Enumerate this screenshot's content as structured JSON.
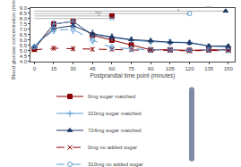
{
  "chart_data": {
    "type": "line",
    "x": [
      0,
      15,
      30,
      45,
      60,
      75,
      90,
      105,
      120,
      135,
      150
    ],
    "xlabel": "Postprandial time point (minutes)",
    "ylabel": "Blood glucose concentration (mmol/L)",
    "xlim": [
      -3,
      155
    ],
    "ylim": [
      4.0,
      9.0
    ],
    "xticks": [
      0,
      15,
      30,
      45,
      60,
      75,
      90,
      105,
      120,
      135,
      150
    ],
    "yticks": [
      {
        "value": 4,
        "label": "4.0"
      },
      4.5,
      {
        "value": 5,
        "label": "5.0"
      },
      5.5,
      {
        "value": 6,
        "label": "6.0"
      },
      6.5,
      {
        "value": 7,
        "label": "7.0"
      },
      7.5,
      {
        "value": 8,
        "label": "8.0"
      },
      8.5,
      {
        "value": 9,
        "label": "9.0"
      }
    ],
    "grid": false,
    "legend": "below",
    "series": [
      {
        "name": "0mg sugar matched",
        "color": "#8B0000",
        "marker": "square",
        "line_style": "solid",
        "values": [
          5.15,
          7.5,
          7.75,
          6.45,
          6.0,
          5.55,
          5.1,
          5.1,
          5.05,
          5.1,
          5.1
        ],
        "errors": [
          0.15,
          0.25,
          0.2,
          0.25,
          0.2,
          0.18,
          0.15,
          0.15,
          0.12,
          0.12,
          0.12
        ]
      },
      {
        "name": "310mg sugar matched",
        "color": "#5B9BD5",
        "marker": "plus",
        "line_style": "solid",
        "values": [
          5.35,
          7.5,
          7.75,
          6.5,
          6.25,
          6.0,
          5.85,
          5.85,
          5.8,
          5.45,
          5.35
        ],
        "errors": [
          0.15,
          0.3,
          0.25,
          0.3,
          0.25,
          0.22,
          0.2,
          0.2,
          0.18,
          0.15,
          0.15
        ]
      },
      {
        "name": "724mg sugar matched",
        "color": "#1F3864",
        "marker": "triangle",
        "line_style": "solid",
        "values": [
          5.4,
          7.1,
          7.35,
          6.6,
          6.3,
          6.05,
          5.95,
          5.8,
          5.75,
          5.45,
          5.45
        ],
        "errors": [
          0.15,
          0.3,
          0.28,
          0.32,
          0.28,
          0.25,
          0.22,
          0.22,
          0.2,
          0.18,
          0.18
        ]
      },
      {
        "name": "0mg no added sugar",
        "color": "#8B0000",
        "marker": "x",
        "line_style": "dashed",
        "values": [
          5.1,
          5.25,
          5.2,
          5.15,
          5.15,
          5.1,
          5.05,
          5.05,
          5.0,
          5.05,
          5.0
        ],
        "errors": [
          0.12,
          0.18,
          0.18,
          0.15,
          0.15,
          0.12,
          0.12,
          0.12,
          0.1,
          0.1,
          0.1
        ]
      },
      {
        "name": "310mg no added sugar",
        "color": "#5B9BD5",
        "marker": "circle",
        "line_style": "dashed",
        "values": [
          5.35,
          6.95,
          7.0,
          6.0,
          5.3,
          5.2,
          5.1,
          5.1,
          5.05,
          5.1,
          5.05
        ],
        "errors": [
          0.15,
          0.32,
          0.35,
          0.35,
          0.3,
          0.25,
          0.2,
          0.2,
          0.18,
          0.15,
          0.15
        ]
      }
    ],
    "annotations": [
      {
        "text": "***",
        "x": 135,
        "y": 8.72,
        "x_start": 0,
        "x_end": 148,
        "color": "#808080",
        "end_marker": "triangle",
        "end_marker_color": "#1F3864",
        "end_x": 148
      },
      {
        "text": "*",
        "x": 112,
        "y": 8.48,
        "x_start": 0,
        "x_end": 120,
        "color": "#808080",
        "end_marker": "circle",
        "end_marker_color": "#5B9BD5",
        "end_x": 120
      },
      {
        "text": "***",
        "x": 50,
        "y": 8.26,
        "x_start": 0,
        "x_end": 60,
        "color": "#808080",
        "end_marker": "square",
        "end_marker_color": "#8B0000",
        "end_x": 60
      },
      {
        "text": "*",
        "x": 50,
        "y": 8.02,
        "x_start": 0,
        "x_end": 60,
        "color": "#808080",
        "end_marker": "x",
        "end_marker_color": "#5B9BD5",
        "end_x": 60
      }
    ]
  }
}
